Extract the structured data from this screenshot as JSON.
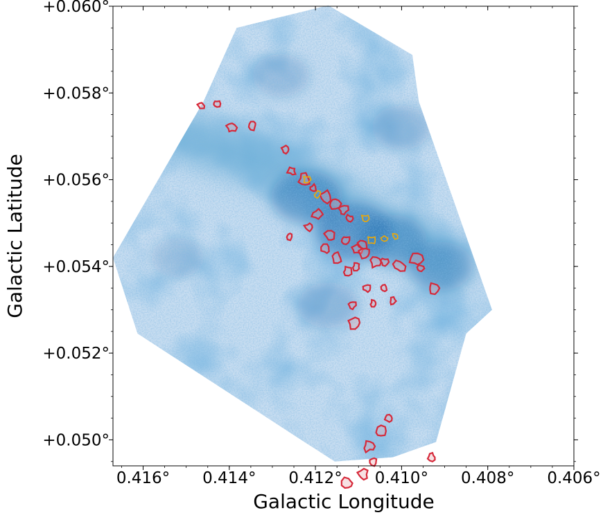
{
  "chart_data": {
    "type": "heatmap",
    "title": "",
    "xlabel": "Galactic Longitude",
    "ylabel": "Galactic Latitude",
    "xlim": [
      0.4167,
      0.406
    ],
    "ylim": [
      0.0494,
      0.06
    ],
    "x_ticks": [
      {
        "value": 0.416,
        "label": "0.416°"
      },
      {
        "value": 0.414,
        "label": "0.414°"
      },
      {
        "value": 0.412,
        "label": "0.412°"
      },
      {
        "value": 0.41,
        "label": "0.410°"
      },
      {
        "value": 0.408,
        "label": "0.408°"
      },
      {
        "value": 0.406,
        "label": "0.406°"
      }
    ],
    "y_ticks": [
      {
        "value": 0.05,
        "label": "+0.050°"
      },
      {
        "value": 0.052,
        "label": "+0.052°"
      },
      {
        "value": 0.054,
        "label": "+0.054°"
      },
      {
        "value": 0.056,
        "label": "+0.056°"
      },
      {
        "value": 0.058,
        "label": "+0.058°"
      },
      {
        "value": 0.06,
        "label": "+0.060°"
      }
    ],
    "colormap": "Blues",
    "colors": {
      "map_light": "#dbe9f6",
      "map_mid": "#6aaed6",
      "map_dark": "#1c6aaf",
      "contour_outer": "#d62839",
      "contour_inner": "#f2a900"
    },
    "coverage_footprint": [
      [
        0.41383,
        0.0595
      ],
      [
        0.4117,
        0.06002
      ],
      [
        0.40975,
        0.05888
      ],
      [
        0.4096,
        0.0578
      ],
      [
        0.4079,
        0.053
      ],
      [
        0.4085,
        0.05245
      ],
      [
        0.4092,
        0.04995
      ],
      [
        0.4102,
        0.0496
      ],
      [
        0.41155,
        0.0495
      ],
      [
        0.4121,
        0.04985
      ],
      [
        0.41613,
        0.05245
      ],
      [
        0.4167,
        0.0542
      ],
      [
        0.4146,
        0.0578
      ]
    ],
    "filament_ridge": [
      [
        0.415,
        0.057
      ],
      [
        0.4135,
        0.0565
      ],
      [
        0.412,
        0.0558
      ],
      [
        0.4108,
        0.055
      ],
      [
        0.4098,
        0.0546
      ],
      [
        0.409,
        0.054
      ]
    ],
    "dark_regions": [
      {
        "l": 0.4111,
        "b": 0.0548,
        "level": 0.95
      },
      {
        "l": 0.4122,
        "b": 0.0556,
        "level": 0.85
      },
      {
        "l": 0.4102,
        "b": 0.0546,
        "level": 0.75
      },
      {
        "l": 0.4091,
        "b": 0.054,
        "level": 0.7
      },
      {
        "l": 0.4117,
        "b": 0.0531,
        "level": 0.6
      },
      {
        "l": 0.41,
        "b": 0.0572,
        "level": 0.55
      },
      {
        "l": 0.4128,
        "b": 0.0584,
        "level": 0.5
      },
      {
        "l": 0.4082,
        "b": 0.0508,
        "level": 0.5
      },
      {
        "l": 0.4152,
        "b": 0.0542,
        "level": 0.4
      }
    ],
    "red_contour_clumps": [
      [
        0.41465,
        0.0577
      ],
      [
        0.4143,
        0.05775
      ],
      [
        0.41395,
        0.0572
      ],
      [
        0.41345,
        0.05725
      ],
      [
        0.4127,
        0.0567
      ],
      [
        0.41255,
        0.0562
      ],
      [
        0.41225,
        0.056
      ],
      [
        0.41205,
        0.0558
      ],
      [
        0.41175,
        0.0556
      ],
      [
        0.41155,
        0.05545
      ],
      [
        0.41135,
        0.0553
      ],
      [
        0.4112,
        0.0551
      ],
      [
        0.41195,
        0.0552
      ],
      [
        0.41215,
        0.0549
      ],
      [
        0.41165,
        0.0547
      ],
      [
        0.4113,
        0.0546
      ],
      [
        0.41175,
        0.0544
      ],
      [
        0.4115,
        0.0542
      ],
      [
        0.41105,
        0.0544
      ],
      [
        0.41085,
        0.0543
      ],
      [
        0.4106,
        0.0541
      ],
      [
        0.4104,
        0.0541
      ],
      [
        0.41105,
        0.054
      ],
      [
        0.41125,
        0.0539
      ],
      [
        0.4108,
        0.0535
      ],
      [
        0.4104,
        0.0535
      ],
      [
        0.41005,
        0.054
      ],
      [
        0.40965,
        0.05415
      ],
      [
        0.40955,
        0.05395
      ],
      [
        0.40925,
        0.0535
      ],
      [
        0.41115,
        0.0531
      ],
      [
        0.41065,
        0.05315
      ],
      [
        0.4102,
        0.0532
      ],
      [
        0.4111,
        0.0527
      ],
      [
        0.4103,
        0.0505
      ],
      [
        0.4105,
        0.0502
      ],
      [
        0.41075,
        0.04985
      ],
      [
        0.41065,
        0.0495
      ],
      [
        0.4109,
        0.0492
      ],
      [
        0.41125,
        0.049
      ],
      [
        0.4093,
        0.0496
      ],
      [
        0.4109,
        0.0545
      ],
      [
        0.4126,
        0.0547
      ]
    ],
    "orange_contour_clumps": [
      [
        0.4122,
        0.056
      ],
      [
        0.41195,
        0.05565
      ],
      [
        0.41085,
        0.0551
      ],
      [
        0.4107,
        0.0546
      ],
      [
        0.4104,
        0.05465
      ],
      [
        0.41015,
        0.0547
      ]
    ]
  }
}
